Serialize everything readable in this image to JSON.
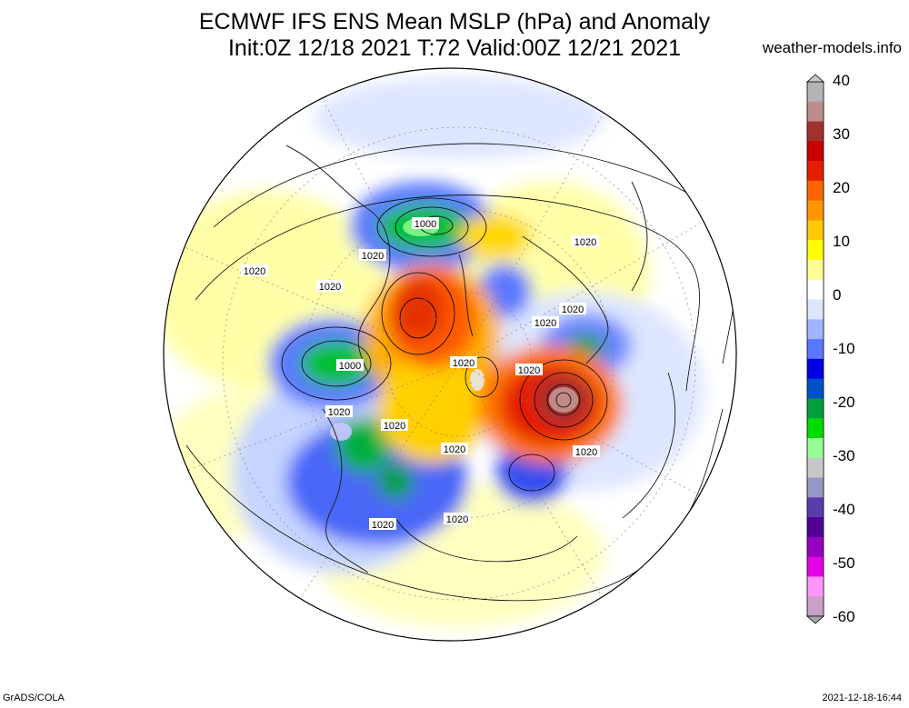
{
  "title": {
    "line1": "ECMWF IFS ENS Mean MSLP (hPa) and Anomaly",
    "line2": "Init:0Z 12/18 2021  T:72 Valid:00Z 12/21 2021"
  },
  "source": "weather-models.info",
  "footer": {
    "left": "GrADS/COLA",
    "right": "2021-12-18-16:44"
  },
  "colorbar": {
    "labels": [
      "40",
      "30",
      "20",
      "10",
      "0",
      "-10",
      "-20",
      "-30",
      "-40",
      "-50",
      "-60"
    ],
    "colors": [
      "#b4b4b4",
      "#be8c8c",
      "#a0322d",
      "#c80000",
      "#e61e00",
      "#ff6400",
      "#ff9600",
      "#ffc800",
      "#ffff00",
      "#ffff96",
      "#ffffff",
      "#dce6ff",
      "#a0b4ff",
      "#5a78ff",
      "#0000e6",
      "#0050c8",
      "#00a03c",
      "#00dc00",
      "#96ff96",
      "#c8c8c8",
      "#9696c8",
      "#5a3caa",
      "#500096",
      "#9600be",
      "#e600e6",
      "#ff96ff",
      "#c8a0c8"
    ]
  },
  "contour_labels": [
    {
      "text": "1000",
      "id": "c1"
    },
    {
      "text": "1000",
      "id": "c2"
    },
    {
      "text": "1020",
      "id": "c3"
    },
    {
      "text": "1020",
      "id": "c4"
    },
    {
      "text": "1020",
      "id": "c5"
    },
    {
      "text": "1020",
      "id": "c6"
    },
    {
      "text": "1020",
      "id": "c7"
    },
    {
      "text": "1020",
      "id": "c8"
    },
    {
      "text": "1020",
      "id": "c9"
    },
    {
      "text": "1020",
      "id": "c10"
    },
    {
      "text": "1020",
      "id": "c11"
    },
    {
      "text": "1020",
      "id": "c12"
    },
    {
      "text": "1020",
      "id": "c13"
    },
    {
      "text": "1020",
      "id": "c14"
    },
    {
      "text": "1020",
      "id": "c15"
    },
    {
      "text": "1020",
      "id": "c16"
    }
  ]
}
